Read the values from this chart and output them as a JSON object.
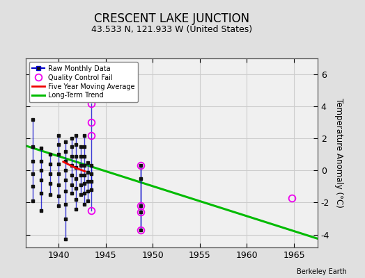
{
  "title": "CRESCENT LAKE JUNCTION",
  "subtitle": "43.533 N, 121.933 W (United States)",
  "ylabel": "Temperature Anomaly (°C)",
  "credit": "Berkeley Earth",
  "xlim": [
    1936.5,
    1967.5
  ],
  "ylim": [
    -4.8,
    7.0
  ],
  "yticks": [
    -4,
    -2,
    0,
    2,
    4,
    6
  ],
  "xticks": [
    1940,
    1945,
    1950,
    1955,
    1960,
    1965
  ],
  "bg_color": "#e0e0e0",
  "plot_bg_color": "#f0f0f0",
  "trend_x": [
    1936.5,
    1967.5
  ],
  "trend_y": [
    1.55,
    -4.25
  ],
  "trend_color": "#00bb00",
  "raw_line_color": "#0000cc",
  "raw_dot_color": "#111111",
  "qc_color": "#ee00ee",
  "moving_avg_color": "#ee0000",
  "grid_color": "#cccccc",
  "title_fontsize": 12,
  "subtitle_fontsize": 9,
  "raw_segments": [
    {
      "x": 1937.25,
      "yvals": [
        3.2,
        1.5,
        0.6,
        -0.2,
        -1.0,
        -1.9
      ]
    },
    {
      "x": 1938.17,
      "yvals": [
        1.4,
        0.6,
        0.0,
        -0.6,
        -1.4,
        -2.5
      ]
    },
    {
      "x": 1939.08,
      "yvals": [
        1.0,
        0.4,
        -0.2,
        -0.8,
        -1.5
      ]
    },
    {
      "x": 1940.0,
      "yvals": [
        2.2,
        1.6,
        1.0,
        0.4,
        -0.2,
        -0.9,
        -1.6,
        -2.2
      ]
    },
    {
      "x": 1940.75,
      "yvals": [
        1.8,
        1.2,
        0.6,
        0.0,
        -0.6,
        -1.3,
        -2.1,
        -3.0,
        -4.3
      ]
    },
    {
      "x": 1941.42,
      "yvals": [
        2.0,
        1.5,
        0.9,
        0.3,
        -0.3,
        -0.9,
        -1.4
      ]
    },
    {
      "x": 1941.83,
      "yvals": [
        2.2,
        1.6,
        0.9,
        0.2,
        -0.5,
        -1.1,
        -1.8,
        -2.4
      ]
    },
    {
      "x": 1942.33,
      "yvals": [
        1.5,
        0.9,
        0.3,
        -0.3,
        -0.9,
        -1.5
      ]
    },
    {
      "x": 1942.75,
      "yvals": [
        2.2,
        1.5,
        0.9,
        0.3,
        -0.3,
        -0.8,
        -1.4,
        -2.1
      ]
    },
    {
      "x": 1943.08,
      "yvals": [
        0.5,
        -0.1,
        -0.7,
        -1.3,
        -1.9
      ]
    },
    {
      "x": 1943.5,
      "yvals": [
        0.3,
        -0.2,
        -0.7,
        -1.2
      ]
    },
    {
      "x": 1948.75,
      "yvals": [
        0.3,
        -0.5,
        -2.2,
        -2.6,
        -3.7
      ]
    }
  ],
  "qc_segments": [
    {
      "x": 1943.5,
      "ymin": -2.5,
      "ymax": 4.2
    },
    {
      "x": 1948.75,
      "ymin": -3.7,
      "ymax": 0.3
    },
    {
      "x": 1964.75,
      "ymin": -1.7,
      "ymax": -1.7
    }
  ],
  "qc_circles": [
    [
      1943.5,
      4.2
    ],
    [
      1943.5,
      3.0
    ],
    [
      1943.5,
      2.2
    ],
    [
      1943.5,
      -2.5
    ],
    [
      1948.75,
      0.3
    ],
    [
      1948.75,
      -2.2
    ],
    [
      1948.75,
      -2.6
    ],
    [
      1948.75,
      -3.7
    ],
    [
      1964.75,
      -1.7
    ]
  ],
  "moving_avg_x": [
    1940.5,
    1941.0,
    1941.5,
    1942.0,
    1942.5,
    1942.8
  ],
  "moving_avg_y": [
    0.55,
    0.4,
    0.25,
    0.12,
    0.02,
    -0.05
  ]
}
